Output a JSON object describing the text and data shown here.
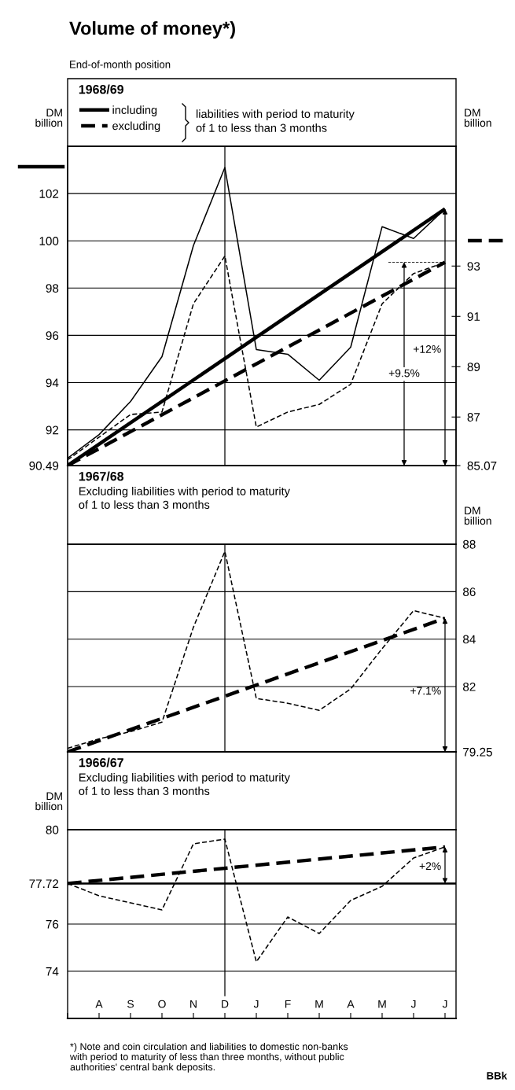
{
  "chart_data": [
    {
      "type": "other",
      "title": "Volume of money*)",
      "subtitle": "End-of-month position",
      "annotations": [
        "*) Note and coin circulation and liabilities to domestic non-banks\nwith period to maturity of less than three months, without public\nauthorities' central bank deposits.",
        "BBk"
      ]
    },
    {
      "type": "line",
      "title": "1968/69",
      "ylabel": "DM\nbillion",
      "y2label": "DM\nbillion",
      "legend": "top left",
      "legend_title": "liabilities with period to maturity\nof 1 to less than 3 months",
      "categories": [
        null,
        null,
        null,
        null,
        null,
        null,
        null,
        null,
        null,
        null,
        null,
        null,
        null
      ],
      "ylim": [
        90.49,
        104
      ],
      "yticks": [
        90.49,
        92,
        94,
        96,
        98,
        100,
        102
      ],
      "y2lim": [
        85.07,
        97.76
      ],
      "y2ticks": [
        85.07,
        87,
        89,
        91,
        93
      ],
      "tick_labels": "y",
      "grid": "y",
      "series": [
        {
          "name": "including",
          "color": "#000000",
          "line_style": "solid",
          "values": [
            90.8,
            91.8,
            93.2,
            95.1,
            99.8,
            103.1,
            95.4,
            95.2,
            94.1,
            95.5,
            100.6,
            100.1,
            101.35
          ]
        },
        {
          "name": "excluding",
          "color": "#000000",
          "line_style": "dashed",
          "axis": "y2",
          "values": [
            85.3,
            86.2,
            87.1,
            87.2,
            91.5,
            93.4,
            86.6,
            87.2,
            87.5,
            88.3,
            91.5,
            92.7,
            93.15
          ]
        },
        {
          "type": "line",
          "color": "#000000",
          "line_style": "solid",
          "values": [
            90.49,
            null,
            null,
            null,
            null,
            null,
            null,
            null,
            null,
            null,
            null,
            null,
            101.35
          ]
        },
        {
          "type": "line",
          "color": "#000000",
          "line_style": "dashed",
          "axis": "y2",
          "values": [
            85.07,
            null,
            null,
            null,
            null,
            null,
            null,
            null,
            null,
            null,
            null,
            null,
            93.15
          ]
        }
      ],
      "annotations": [
        "+12%",
        "+9.5%"
      ]
    },
    {
      "type": "line",
      "title": "1967/68",
      "subtitle": "Excluding liabilities with period to maturity\nof 1 to less than 3 months",
      "ylabel": "DM\nbillion",
      "categories": [
        null,
        null,
        null,
        null,
        null,
        null,
        null,
        null,
        null,
        null,
        null,
        null,
        null
      ],
      "ylim": [
        79.25,
        88
      ],
      "yticks": [
        79.25,
        82,
        84,
        86,
        88
      ],
      "tick_labels": "y",
      "grid": "y",
      "series": [
        {
          "color": "#000000",
          "line_style": "dashed",
          "values": [
            79.4,
            79.8,
            80.1,
            80.5,
            84.5,
            87.7,
            81.5,
            81.3,
            81.0,
            81.9,
            83.6,
            85.2,
            84.88
          ]
        },
        {
          "type": "line",
          "color": "#000000",
          "line_style": "dashed",
          "values": [
            79.25,
            null,
            null,
            null,
            null,
            null,
            null,
            null,
            null,
            null,
            null,
            null,
            84.88
          ]
        }
      ],
      "annotations": [
        "+7.1%"
      ]
    },
    {
      "type": "line",
      "title": "1966/67",
      "subtitle": "Excluding liabilities with period to maturity\nof 1 to less than 3 months",
      "ylabel": "DM\nbillion",
      "categories": [
        null,
        "A",
        "S",
        "O",
        "N",
        "D",
        "J",
        "F",
        "M",
        "A",
        "M",
        "J",
        "J"
      ],
      "ylim": [
        72,
        80
      ],
      "yticks": [
        74,
        76,
        77.72,
        80
      ],
      "grid": "y",
      "ref_lines": [
        {
          "axis": "x",
          "value": "D"
        },
        {
          "axis": "y",
          "value": 77.72
        }
      ],
      "series": [
        {
          "color": "#000000",
          "line_style": "dashed",
          "values": [
            77.72,
            77.2,
            76.9,
            76.6,
            79.4,
            79.6,
            74.4,
            76.3,
            75.6,
            77.0,
            77.6,
            78.8,
            79.27
          ]
        },
        {
          "type": "line",
          "color": "#000000",
          "line_style": "dashed",
          "values": [
            77.72,
            null,
            null,
            null,
            null,
            null,
            null,
            null,
            null,
            null,
            null,
            null,
            79.27
          ]
        }
      ],
      "annotations": [
        "+2%"
      ]
    }
  ]
}
